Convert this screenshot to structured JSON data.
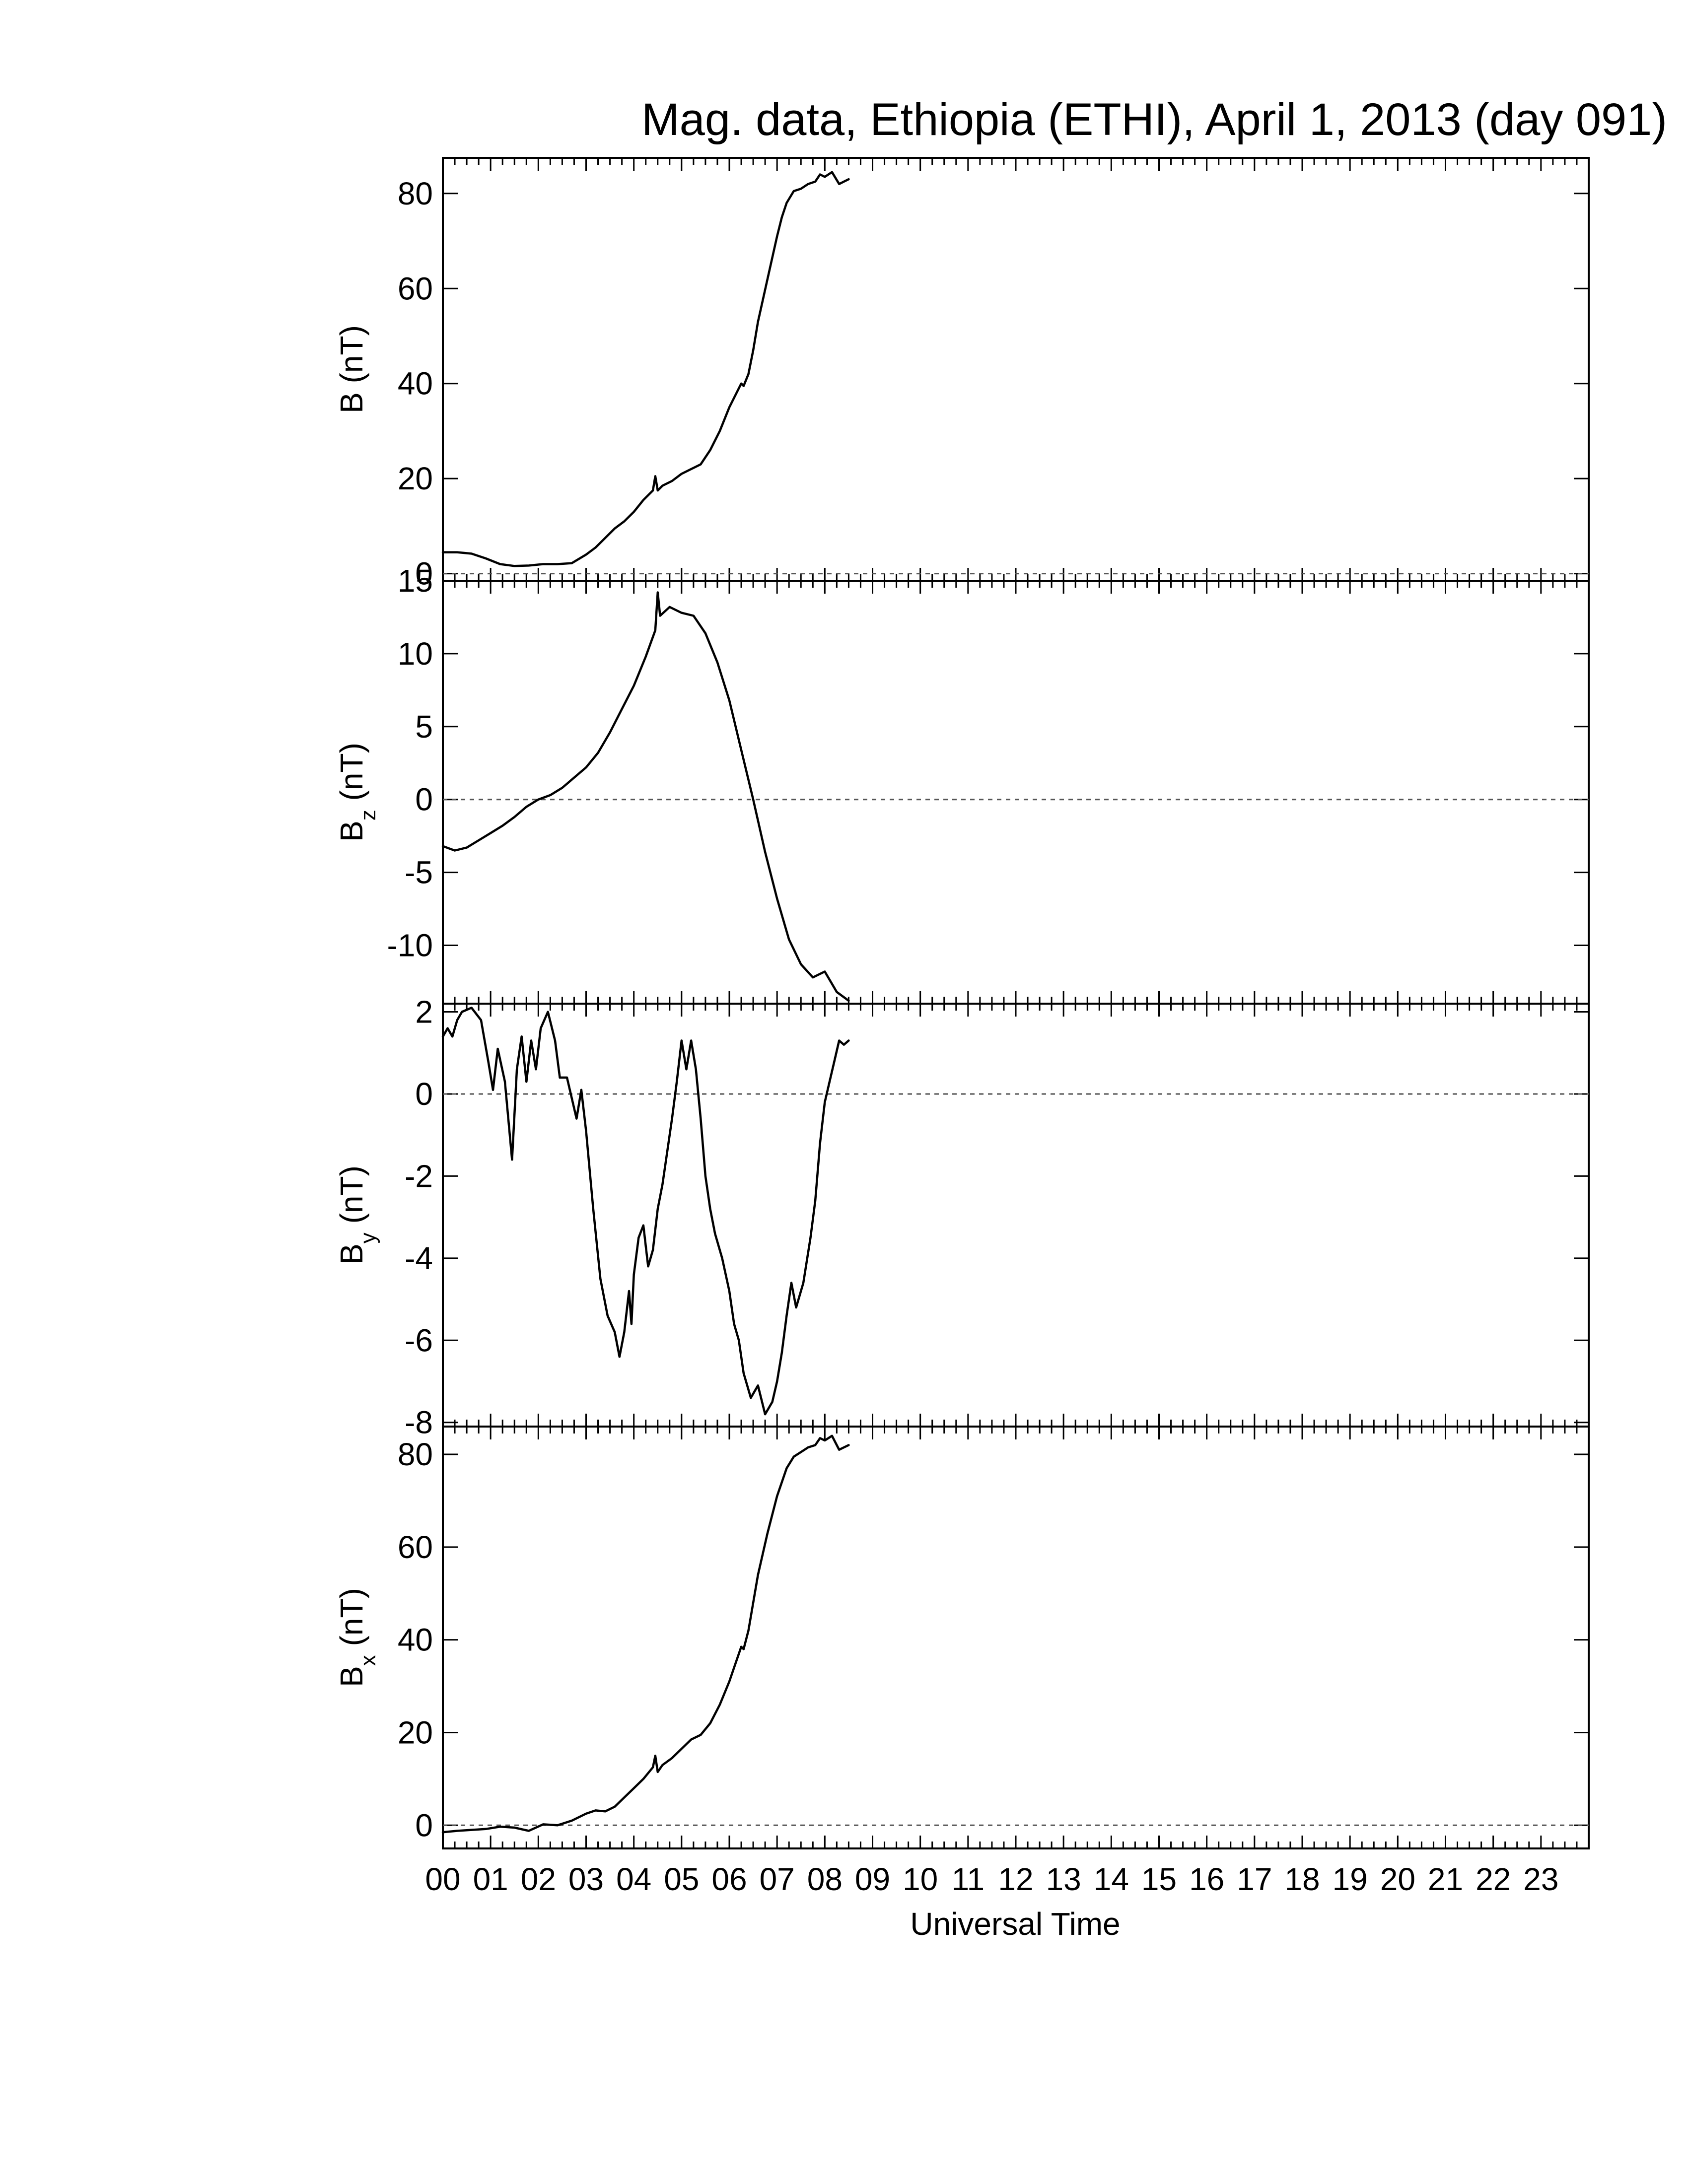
{
  "chart_data": {
    "type": "line",
    "title": "Mag. data, Ethiopia (ETHI), April 1, 2013 (day 091)",
    "xlabel": "Universal Time",
    "x_unit": "hours UT",
    "xlim": [
      0,
      24
    ],
    "x_tick_labels": [
      "00",
      "01",
      "02",
      "03",
      "04",
      "05",
      "06",
      "07",
      "08",
      "09",
      "10",
      "11",
      "12",
      "13",
      "14",
      "15",
      "16",
      "17",
      "18",
      "19",
      "20",
      "21",
      "22",
      "23"
    ],
    "panels": [
      {
        "id": "B",
        "ylabel_main": "B",
        "ylabel_sub": "",
        "ylabel_unit": "(nT)",
        "ylim": [
          -1.5,
          87.5
        ],
        "yticks": [
          0,
          20,
          40,
          60,
          80
        ],
        "zero_line": true,
        "series": [
          {
            "x": [
              0,
              0.3,
              0.6,
              0.9,
              1.2,
              1.5,
              1.8,
              2.1,
              2.4,
              2.7,
              3.0,
              3.2,
              3.4,
              3.6,
              3.8,
              4.0,
              4.2,
              4.4,
              4.45,
              4.5,
              4.6,
              4.8,
              5.0,
              5.2,
              5.4,
              5.6,
              5.8,
              6.0,
              6.2,
              6.25,
              6.3,
              6.4,
              6.5,
              6.6,
              6.8,
              7.0,
              7.1,
              7.2,
              7.35,
              7.5,
              7.65,
              7.8,
              7.9,
              8.0,
              8.15,
              8.3,
              8.4,
              8.5
            ],
            "y": [
              4.5,
              4.5,
              4.2,
              3.2,
              2.0,
              1.6,
              1.7,
              2.0,
              2.0,
              2.2,
              4.0,
              5.5,
              7.5,
              9.5,
              11.0,
              13.0,
              15.5,
              17.5,
              20.5,
              17.5,
              18.5,
              19.5,
              21.0,
              22.0,
              23.0,
              26.0,
              30.0,
              35.0,
              39.0,
              40.0,
              39.5,
              42.0,
              47.0,
              53.0,
              62.0,
              71.0,
              75.0,
              78.0,
              80.5,
              81.0,
              82.0,
              82.5,
              84.0,
              83.5,
              84.5,
              82.0,
              82.5,
              83.0
            ]
          }
        ]
      },
      {
        "id": "Bz",
        "ylabel_main": "B",
        "ylabel_sub": "z",
        "ylabel_unit": "(nT)",
        "ylim": [
          -14,
          15
        ],
        "yticks": [
          -10,
          -5,
          0,
          5,
          10,
          15
        ],
        "zero_line": true,
        "series": [
          {
            "x": [
              0,
              0.25,
              0.5,
              0.75,
              1.0,
              1.25,
              1.5,
              1.75,
              2.0,
              2.25,
              2.5,
              2.75,
              3.0,
              3.25,
              3.5,
              3.75,
              4.0,
              4.25,
              4.45,
              4.5,
              4.55,
              4.75,
              5.0,
              5.25,
              5.5,
              5.75,
              6.0,
              6.25,
              6.5,
              6.75,
              7.0,
              7.25,
              7.5,
              7.75,
              8.0,
              8.25,
              8.5
            ],
            "y": [
              -3.2,
              -3.5,
              -3.3,
              -2.8,
              -2.3,
              -1.8,
              -1.2,
              -0.5,
              0.0,
              0.3,
              0.8,
              1.5,
              2.2,
              3.2,
              4.6,
              6.2,
              7.8,
              9.8,
              11.6,
              14.2,
              12.6,
              13.2,
              12.8,
              12.6,
              11.4,
              9.4,
              6.8,
              3.4,
              0.0,
              -3.6,
              -6.8,
              -9.6,
              -11.3,
              -12.2,
              -11.8,
              -13.2,
              -13.8
            ]
          }
        ]
      },
      {
        "id": "By",
        "ylabel_main": "B",
        "ylabel_sub": "y",
        "ylabel_unit": "(nT)",
        "ylim": [
          -8.1,
          2.2
        ],
        "yticks": [
          -8,
          -6,
          -4,
          -2,
          0,
          2
        ],
        "zero_line": true,
        "series": [
          {
            "x": [
              0,
              0.1,
              0.2,
              0.3,
              0.4,
              0.6,
              0.8,
              0.95,
              1.05,
              1.15,
              1.3,
              1.45,
              1.55,
              1.65,
              1.75,
              1.85,
              1.95,
              2.05,
              2.2,
              2.35,
              2.45,
              2.6,
              2.8,
              2.9,
              3.0,
              3.15,
              3.3,
              3.45,
              3.6,
              3.7,
              3.8,
              3.9,
              3.95,
              4.0,
              4.1,
              4.2,
              4.3,
              4.4,
              4.5,
              4.6,
              4.7,
              4.8,
              4.9,
              5.0,
              5.1,
              5.2,
              5.3,
              5.4,
              5.5,
              5.6,
              5.7,
              5.85,
              6.0,
              6.1,
              6.2,
              6.3,
              6.45,
              6.6,
              6.75,
              6.9,
              7.0,
              7.1,
              7.2,
              7.3,
              7.4,
              7.55,
              7.7,
              7.8,
              7.9,
              8.0,
              8.1,
              8.2,
              8.3,
              8.4,
              8.5
            ],
            "y": [
              1.4,
              1.6,
              1.4,
              1.8,
              2.0,
              2.1,
              1.8,
              0.8,
              0.1,
              1.1,
              0.3,
              -1.6,
              0.6,
              1.4,
              0.3,
              1.3,
              0.6,
              1.6,
              2.0,
              1.3,
              0.4,
              0.4,
              -0.6,
              0.1,
              -0.9,
              -2.8,
              -4.5,
              -5.4,
              -5.8,
              -6.4,
              -5.8,
              -4.8,
              -5.6,
              -4.4,
              -3.5,
              -3.2,
              -4.2,
              -3.8,
              -2.8,
              -2.2,
              -1.4,
              -0.6,
              0.3,
              1.3,
              0.6,
              1.3,
              0.6,
              -0.6,
              -2.0,
              -2.8,
              -3.4,
              -4.0,
              -4.8,
              -5.6,
              -6.0,
              -6.8,
              -7.4,
              -7.1,
              -7.8,
              -7.5,
              -7.0,
              -6.3,
              -5.4,
              -4.6,
              -5.2,
              -4.6,
              -3.5,
              -2.6,
              -1.2,
              -0.2,
              0.3,
              0.8,
              1.3,
              1.2,
              1.3
            ]
          }
        ]
      },
      {
        "id": "Bx",
        "ylabel_main": "B",
        "ylabel_sub": "x",
        "ylabel_unit": "(nT)",
        "ylim": [
          -5,
          86
        ],
        "yticks": [
          0,
          20,
          40,
          60,
          80
        ],
        "zero_line": true,
        "series": [
          {
            "x": [
              0,
              0.3,
              0.6,
              0.9,
              1.2,
              1.5,
              1.8,
              2.1,
              2.4,
              2.7,
              3.0,
              3.2,
              3.4,
              3.6,
              3.8,
              4.0,
              4.2,
              4.4,
              4.45,
              4.5,
              4.6,
              4.8,
              5.0,
              5.2,
              5.4,
              5.6,
              5.8,
              6.0,
              6.2,
              6.25,
              6.3,
              6.4,
              6.5,
              6.6,
              6.8,
              7.0,
              7.1,
              7.2,
              7.35,
              7.5,
              7.65,
              7.8,
              7.9,
              8.0,
              8.15,
              8.3,
              8.4,
              8.5
            ],
            "y": [
              -1.5,
              -1.2,
              -1.0,
              -0.8,
              -0.3,
              -0.5,
              -1.2,
              0.2,
              0.0,
              1.0,
              2.5,
              3.2,
              3.0,
              4.0,
              6.0,
              8.0,
              10.0,
              12.5,
              15.0,
              11.5,
              13.0,
              14.5,
              16.5,
              18.5,
              19.5,
              22.0,
              26.0,
              31.0,
              37.0,
              38.5,
              38.0,
              42.0,
              48.0,
              54.0,
              63.0,
              71.0,
              74.0,
              77.0,
              79.5,
              80.5,
              81.5,
              82.0,
              83.5,
              83.0,
              84.0,
              81.0,
              81.5,
              82.0
            ]
          }
        ]
      }
    ]
  }
}
